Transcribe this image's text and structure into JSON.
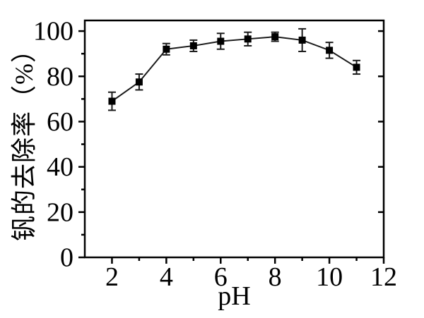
{
  "figure": {
    "background": "#ffffff",
    "axis_color": "#000000",
    "marker_color": "#000000",
    "line_color": "#1a1a1a"
  },
  "chart_data": {
    "type": "line",
    "title": "",
    "xlabel": "pH",
    "ylabel": "钒的去除率（%）",
    "x": [
      2,
      3,
      4,
      5,
      6,
      7,
      8,
      9,
      10,
      11
    ],
    "series": [
      {
        "name": "vanadium-removal-rate",
        "values": [
          69,
          77.5,
          92,
          93.5,
          95.5,
          96.5,
          97.5,
          96,
          91.5,
          84
        ],
        "errors": [
          4,
          3.5,
          2.5,
          2.5,
          3.5,
          3,
          2,
          5,
          3.5,
          3
        ]
      }
    ],
    "xlim": [
      1,
      12
    ],
    "ylim": [
      0,
      104.7
    ],
    "x_major_ticks": [
      2,
      4,
      6,
      8,
      10,
      12
    ],
    "x_minor_ticks": [
      3,
      5,
      7,
      9,
      11
    ],
    "y_major_ticks": [
      0,
      20,
      40,
      60,
      80,
      100
    ],
    "y_minor_ticks": [
      10,
      30,
      50,
      70,
      90
    ],
    "right_axis_ticks": [
      20,
      40,
      60,
      80,
      100
    ],
    "grid": false,
    "legend": false,
    "marker": "square",
    "error_caps": true
  }
}
